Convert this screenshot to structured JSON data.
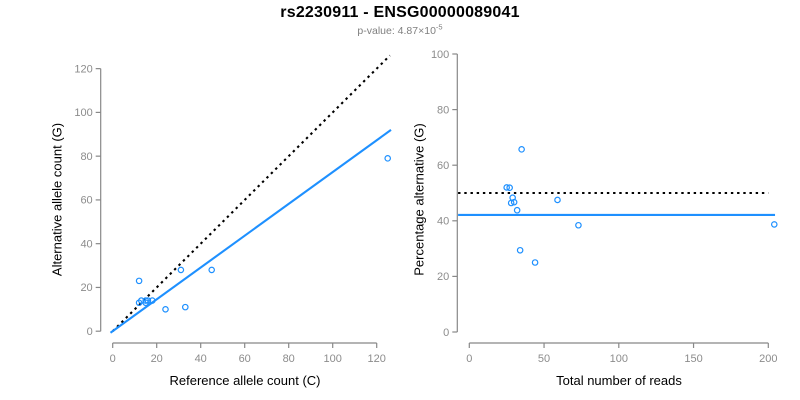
{
  "header": {
    "title": "rs2230911 - ENSG00000089041",
    "pvalue_text": "p-value: 4.87×10",
    "pvalue_exponent": "-5"
  },
  "colors": {
    "point": "#1E90FF",
    "fit_line": "#1E90FF",
    "reference_line": "#000000",
    "axis": "#888888",
    "tick_label": "#8c8c8c",
    "axis_title": "#000000",
    "title": "#000000",
    "subtitle": "#7f7f7f",
    "background": "#ffffff"
  },
  "chart_data": [
    {
      "type": "scatter",
      "panel": "allele-count-scatter",
      "xlabel": "Reference allele count (C)",
      "ylabel": "Alternative allele count (G)",
      "xlim": [
        0,
        125
      ],
      "ylim": [
        0,
        125
      ],
      "xticks": [
        0,
        20,
        40,
        60,
        80,
        100,
        120
      ],
      "yticks": [
        0,
        20,
        40,
        60,
        80,
        100,
        120
      ],
      "grid": false,
      "legend": "none",
      "points": [
        [
          12,
          23
        ],
        [
          12,
          13
        ],
        [
          13,
          14
        ],
        [
          15,
          14
        ],
        [
          15,
          13
        ],
        [
          16,
          14
        ],
        [
          18,
          14
        ],
        [
          24,
          10
        ],
        [
          31,
          28
        ],
        [
          33,
          11
        ],
        [
          45,
          28
        ],
        [
          125,
          79
        ]
      ],
      "lines": [
        {
          "name": "identity-line",
          "style": "dotted",
          "color": "#000000",
          "x1": 0,
          "y1": 0,
          "x2": 126,
          "y2": 126,
          "slope": 1,
          "intercept": 0
        },
        {
          "name": "fit-line",
          "style": "solid",
          "color": "#1E90FF",
          "x1": -1,
          "y1": -0.7,
          "x2": 126.5,
          "y2": 92,
          "slope": 0.727,
          "intercept": 0
        }
      ]
    },
    {
      "type": "scatter",
      "panel": "percentage-scatter",
      "xlabel": "Total number of reads",
      "ylabel": "Percentage alternative (G)",
      "xlim": [
        0,
        204
      ],
      "ylim": [
        0,
        100
      ],
      "xticks": [
        0,
        50,
        100,
        150,
        200
      ],
      "yticks": [
        0,
        20,
        40,
        60,
        80,
        100
      ],
      "grid": false,
      "legend": "none",
      "points": [
        [
          35,
          65.7
        ],
        [
          25,
          52.0
        ],
        [
          27,
          51.9
        ],
        [
          29,
          48.3
        ],
        [
          28,
          46.4
        ],
        [
          30,
          46.7
        ],
        [
          32,
          43.8
        ],
        [
          34,
          29.4
        ],
        [
          59,
          47.5
        ],
        [
          44,
          25.0
        ],
        [
          73,
          38.4
        ],
        [
          204,
          38.7
        ]
      ],
      "lines": [
        {
          "name": "null-line",
          "style": "dotted",
          "color": "#000000",
          "y": 50,
          "x1": -7.5,
          "x2": 200
        },
        {
          "name": "fit-line",
          "style": "solid",
          "color": "#1E90FF",
          "y": 42.1,
          "x1": -7.5,
          "x2": 204.5
        }
      ]
    }
  ]
}
